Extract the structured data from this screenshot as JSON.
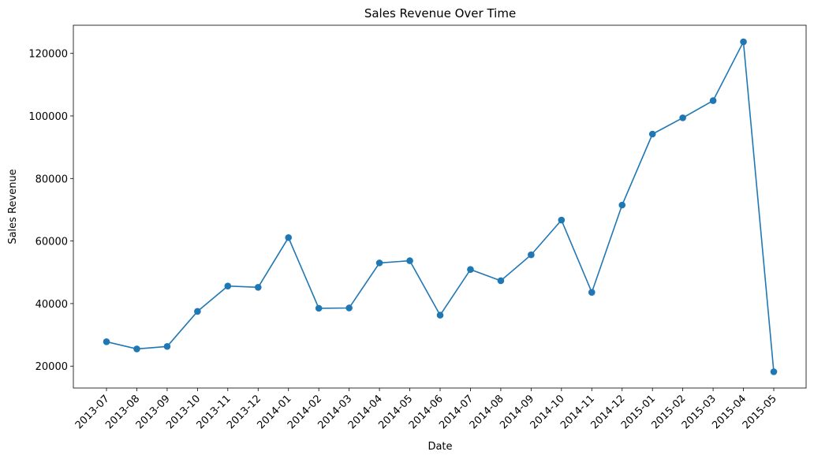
{
  "chart_data": {
    "type": "line",
    "title": "Sales Revenue Over Time",
    "xlabel": "Date",
    "ylabel": "Sales Revenue",
    "ylim": [
      13000,
      129000
    ],
    "yticks": [
      "20000",
      "40000",
      "60000",
      "80000",
      "100000",
      "120000"
    ],
    "grid": false,
    "legend": "none",
    "color": "#1f77b4",
    "x": [
      "2013-07",
      "2013-08",
      "2013-09",
      "2013-10",
      "2013-11",
      "2013-12",
      "2014-01",
      "2014-02",
      "2014-03",
      "2014-04",
      "2014-05",
      "2014-06",
      "2014-07",
      "2014-08",
      "2014-09",
      "2014-10",
      "2014-11",
      "2014-12",
      "2015-01",
      "2015-02",
      "2015-03",
      "2015-04",
      "2015-05"
    ],
    "values": [
      27800,
      25500,
      26300,
      37500,
      45600,
      45200,
      61100,
      38500,
      38600,
      53000,
      53700,
      36300,
      50900,
      47300,
      55600,
      66700,
      43600,
      71500,
      94200,
      99400,
      104900,
      123700,
      18200
    ]
  }
}
